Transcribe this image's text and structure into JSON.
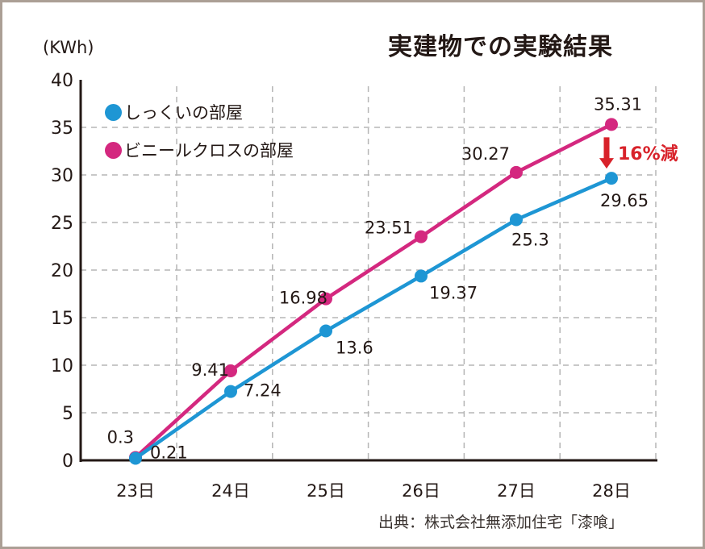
{
  "chart_data": {
    "type": "line",
    "title": "実建物での実験結果",
    "ylabel": "(KWh)",
    "xlabel": "",
    "categories": [
      "23日",
      "24日",
      "25日",
      "26日",
      "27日",
      "28日"
    ],
    "ylim": [
      0,
      40
    ],
    "yticks": [
      "0",
      "5",
      "10",
      "15",
      "20",
      "25",
      "30",
      "35",
      "40"
    ],
    "grid": true,
    "legend_position": "top-left",
    "series": [
      {
        "name": "しっくいの部屋",
        "color": "#1e96d4",
        "values": [
          0.21,
          7.24,
          13.6,
          19.37,
          25.3,
          29.65
        ],
        "labels": [
          "0.21",
          "7.24",
          "13.6",
          "19.37",
          "25.3",
          "29.65"
        ]
      },
      {
        "name": "ビニールクロスの部屋",
        "color": "#d4287f",
        "values": [
          0.3,
          9.41,
          16.98,
          23.51,
          30.27,
          35.31
        ],
        "labels": [
          "0.3",
          "9.41",
          "16.98",
          "23.51",
          "30.27",
          "35.31"
        ]
      }
    ],
    "annotation": {
      "text": "16%減",
      "color": "#d8222a"
    },
    "source": "出典：株式会社無添加住宅「漆喰」"
  }
}
